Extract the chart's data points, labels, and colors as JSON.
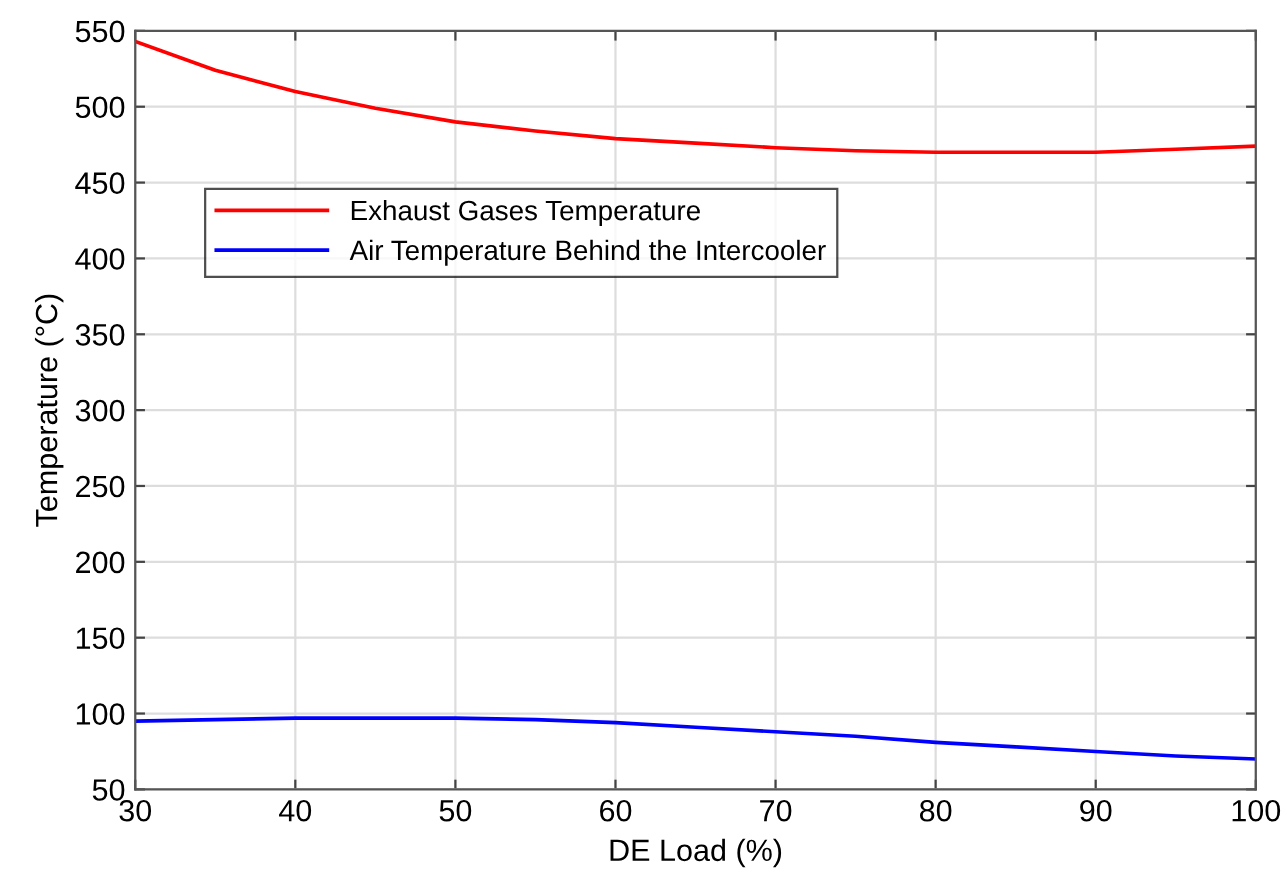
{
  "chart_data": {
    "type": "line",
    "xlabel": "DE Load (%)",
    "ylabel": "Temperature (°C)",
    "x": [
      30,
      35,
      40,
      45,
      50,
      55,
      60,
      65,
      70,
      75,
      80,
      85,
      90,
      95,
      100
    ],
    "series": [
      {
        "name": "Exhaust Gases Temperature",
        "color": "#ff0000",
        "values": [
          543,
          524,
          510,
          499,
          490,
          484,
          479,
          476,
          473,
          471,
          470,
          470,
          470,
          472,
          474
        ]
      },
      {
        "name": "Air Temperature Behind the Intercooler",
        "color": "#0000ff",
        "values": [
          95,
          96,
          97,
          97,
          97,
          96,
          94,
          91,
          88,
          85,
          81,
          78,
          75,
          72,
          70
        ]
      }
    ],
    "xlim": [
      30,
      100
    ],
    "xticks": [
      30,
      40,
      50,
      60,
      70,
      80,
      90,
      100
    ],
    "ylim": [
      50,
      550
    ],
    "yticks": [
      50,
      100,
      150,
      200,
      250,
      300,
      350,
      400,
      450,
      500,
      550
    ],
    "grid": true,
    "legend": "top left"
  }
}
